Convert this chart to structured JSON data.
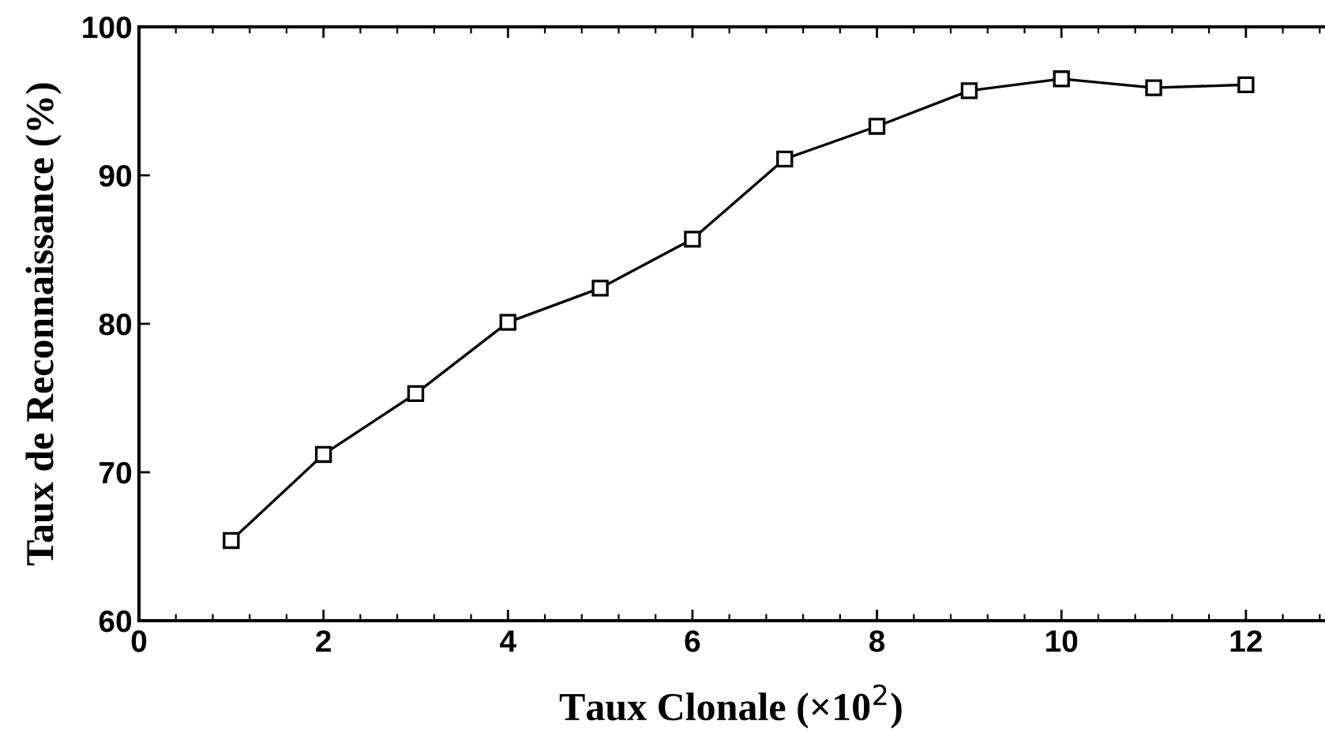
{
  "chart_data": {
    "type": "line",
    "xlabel": "Taux Clonale (×10$^{2}$)",
    "ylabel": "Taux de Reconnaissance (%)",
    "x": [
      1,
      2,
      3,
      4,
      5,
      6,
      7,
      8,
      9,
      10,
      11,
      12
    ],
    "values": [
      65.4,
      71.2,
      75.3,
      80.1,
      82.4,
      85.7,
      91.1,
      93.3,
      95.7,
      96.5,
      95.9,
      96.1
    ],
    "color": "#000000",
    "marker": "square",
    "line_style": "solid",
    "xlim": [
      0,
      12.84
    ],
    "ylim": [
      60,
      100
    ],
    "xticks": [
      0,
      2,
      4,
      6,
      8,
      10,
      12
    ],
    "yticks": [
      60,
      70,
      80,
      90,
      100
    ]
  }
}
